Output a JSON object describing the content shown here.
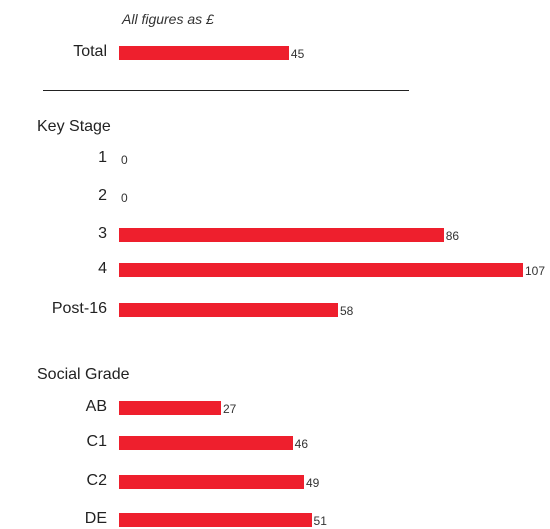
{
  "note": "All figures as £",
  "colors": {
    "bar": "#ee1f2d"
  },
  "chart_data": {
    "type": "bar",
    "orientation": "horizontal",
    "unit": "£",
    "groups": [
      {
        "name": "",
        "categories": [
          "Total"
        ],
        "values": [
          45
        ]
      },
      {
        "name": "Key Stage",
        "categories": [
          "1",
          "2",
          "3",
          "4",
          "Post-16"
        ],
        "values": [
          0,
          0,
          86,
          107,
          58
        ]
      },
      {
        "name": "Social Grade",
        "categories": [
          "AB",
          "C1",
          "C2",
          "DE"
        ],
        "values": [
          27,
          46,
          49,
          51
        ]
      }
    ],
    "xlim": [
      0,
      107
    ],
    "grid": false,
    "legend": "none"
  }
}
